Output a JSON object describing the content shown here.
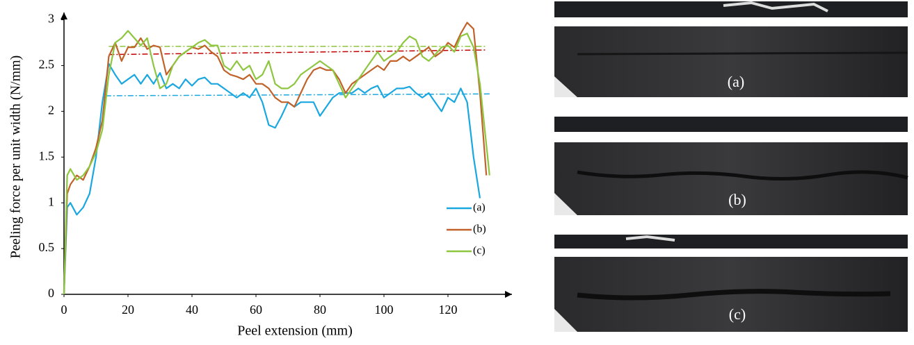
{
  "chart_data": {
    "type": "line",
    "xlabel": "Peel extension (mm)",
    "ylabel": "Peeling force per unit width (N/mm)",
    "xlim": [
      0,
      140
    ],
    "ylim": [
      0,
      3.08
    ],
    "xticks": [
      0,
      20,
      40,
      60,
      80,
      100,
      120
    ],
    "yticks": [
      0,
      0.5,
      1,
      1.5,
      2,
      2.5,
      3
    ],
    "legend": "right",
    "series": [
      {
        "name": "(a)",
        "color": "#1aa7e0",
        "x": [
          0,
          1,
          2,
          4,
          6,
          8,
          10,
          12,
          14,
          16,
          18,
          20,
          22,
          24,
          26,
          28,
          30,
          32,
          34,
          36,
          38,
          40,
          42,
          44,
          46,
          48,
          50,
          52,
          54,
          56,
          58,
          60,
          62,
          64,
          66,
          68,
          70,
          72,
          74,
          76,
          78,
          80,
          82,
          84,
          86,
          88,
          90,
          92,
          94,
          96,
          98,
          100,
          102,
          104,
          106,
          108,
          110,
          112,
          114,
          116,
          118,
          120,
          122,
          124,
          126,
          128,
          130
        ],
        "values": [
          0,
          0.95,
          1.0,
          0.87,
          0.95,
          1.1,
          1.5,
          2.1,
          2.52,
          2.4,
          2.3,
          2.35,
          2.4,
          2.3,
          2.4,
          2.3,
          2.42,
          2.25,
          2.3,
          2.25,
          2.35,
          2.28,
          2.35,
          2.37,
          2.3,
          2.3,
          2.25,
          2.2,
          2.15,
          2.2,
          2.15,
          2.25,
          2.1,
          1.85,
          1.82,
          1.95,
          2.1,
          2.05,
          2.1,
          2.1,
          2.1,
          1.95,
          2.05,
          2.15,
          2.2,
          2.2,
          2.2,
          2.25,
          2.2,
          2.25,
          2.28,
          2.15,
          2.2,
          2.25,
          2.25,
          2.27,
          2.2,
          2.15,
          2.2,
          2.1,
          2.0,
          2.15,
          2.1,
          2.25,
          2.1,
          1.5,
          1.05
        ]
      },
      {
        "name": "(b)",
        "color": "#c0622a",
        "x": [
          0,
          1,
          2,
          4,
          6,
          8,
          10,
          12,
          14,
          16,
          18,
          20,
          22,
          24,
          26,
          28,
          30,
          32,
          34,
          36,
          38,
          40,
          42,
          44,
          46,
          48,
          50,
          52,
          54,
          56,
          58,
          60,
          62,
          64,
          66,
          68,
          70,
          72,
          74,
          76,
          78,
          80,
          82,
          84,
          86,
          88,
          90,
          92,
          94,
          96,
          98,
          100,
          102,
          104,
          106,
          108,
          110,
          112,
          114,
          116,
          118,
          120,
          122,
          124,
          126,
          128,
          130,
          132
        ],
        "values": [
          0,
          1.1,
          1.2,
          1.3,
          1.25,
          1.4,
          1.6,
          1.9,
          2.6,
          2.75,
          2.55,
          2.7,
          2.7,
          2.8,
          2.68,
          2.72,
          2.7,
          2.4,
          2.5,
          2.6,
          2.65,
          2.7,
          2.68,
          2.72,
          2.65,
          2.6,
          2.45,
          2.4,
          2.38,
          2.35,
          2.4,
          2.3,
          2.3,
          2.25,
          2.15,
          2.1,
          2.1,
          2.05,
          2.2,
          2.35,
          2.45,
          2.48,
          2.45,
          2.45,
          2.35,
          2.2,
          2.3,
          2.35,
          2.4,
          2.45,
          2.5,
          2.45,
          2.55,
          2.55,
          2.6,
          2.55,
          2.6,
          2.65,
          2.7,
          2.6,
          2.65,
          2.75,
          2.7,
          2.85,
          2.97,
          2.9,
          2.2,
          1.3
        ]
      },
      {
        "name": "(c)",
        "color": "#8dc63f",
        "x": [
          0,
          1,
          2,
          4,
          6,
          8,
          10,
          12,
          14,
          16,
          18,
          20,
          22,
          24,
          26,
          28,
          30,
          32,
          34,
          36,
          38,
          40,
          42,
          44,
          46,
          48,
          50,
          52,
          54,
          56,
          58,
          60,
          62,
          64,
          66,
          68,
          70,
          72,
          74,
          76,
          78,
          80,
          82,
          84,
          86,
          88,
          90,
          92,
          94,
          96,
          98,
          100,
          102,
          104,
          106,
          108,
          110,
          112,
          114,
          116,
          118,
          120,
          122,
          124,
          126,
          128,
          130,
          133
        ],
        "values": [
          0,
          1.3,
          1.37,
          1.25,
          1.3,
          1.4,
          1.55,
          1.8,
          2.4,
          2.75,
          2.8,
          2.88,
          2.8,
          2.72,
          2.8,
          2.5,
          2.25,
          2.3,
          2.5,
          2.6,
          2.65,
          2.7,
          2.75,
          2.78,
          2.72,
          2.72,
          2.5,
          2.45,
          2.55,
          2.45,
          2.5,
          2.35,
          2.4,
          2.55,
          2.3,
          2.25,
          2.25,
          2.3,
          2.4,
          2.45,
          2.5,
          2.55,
          2.5,
          2.45,
          2.3,
          2.15,
          2.25,
          2.35,
          2.45,
          2.55,
          2.65,
          2.55,
          2.6,
          2.65,
          2.75,
          2.82,
          2.78,
          2.6,
          2.55,
          2.62,
          2.7,
          2.72,
          2.65,
          2.82,
          2.85,
          2.7,
          2.3,
          1.3
        ]
      }
    ],
    "mean_lines": [
      {
        "color": "#1aa7e0",
        "x": [
          13,
          133
        ],
        "values": [
          2.17,
          2.19
        ]
      },
      {
        "color": "#c00000",
        "x": [
          14,
          132
        ],
        "values": [
          2.62,
          2.67
        ]
      },
      {
        "color": "#8dc63f",
        "x": [
          14,
          132
        ],
        "values": [
          2.71,
          2.71
        ]
      }
    ]
  },
  "photos": [
    {
      "label": "(a)"
    },
    {
      "label": "(b)"
    },
    {
      "label": "(c)"
    }
  ]
}
